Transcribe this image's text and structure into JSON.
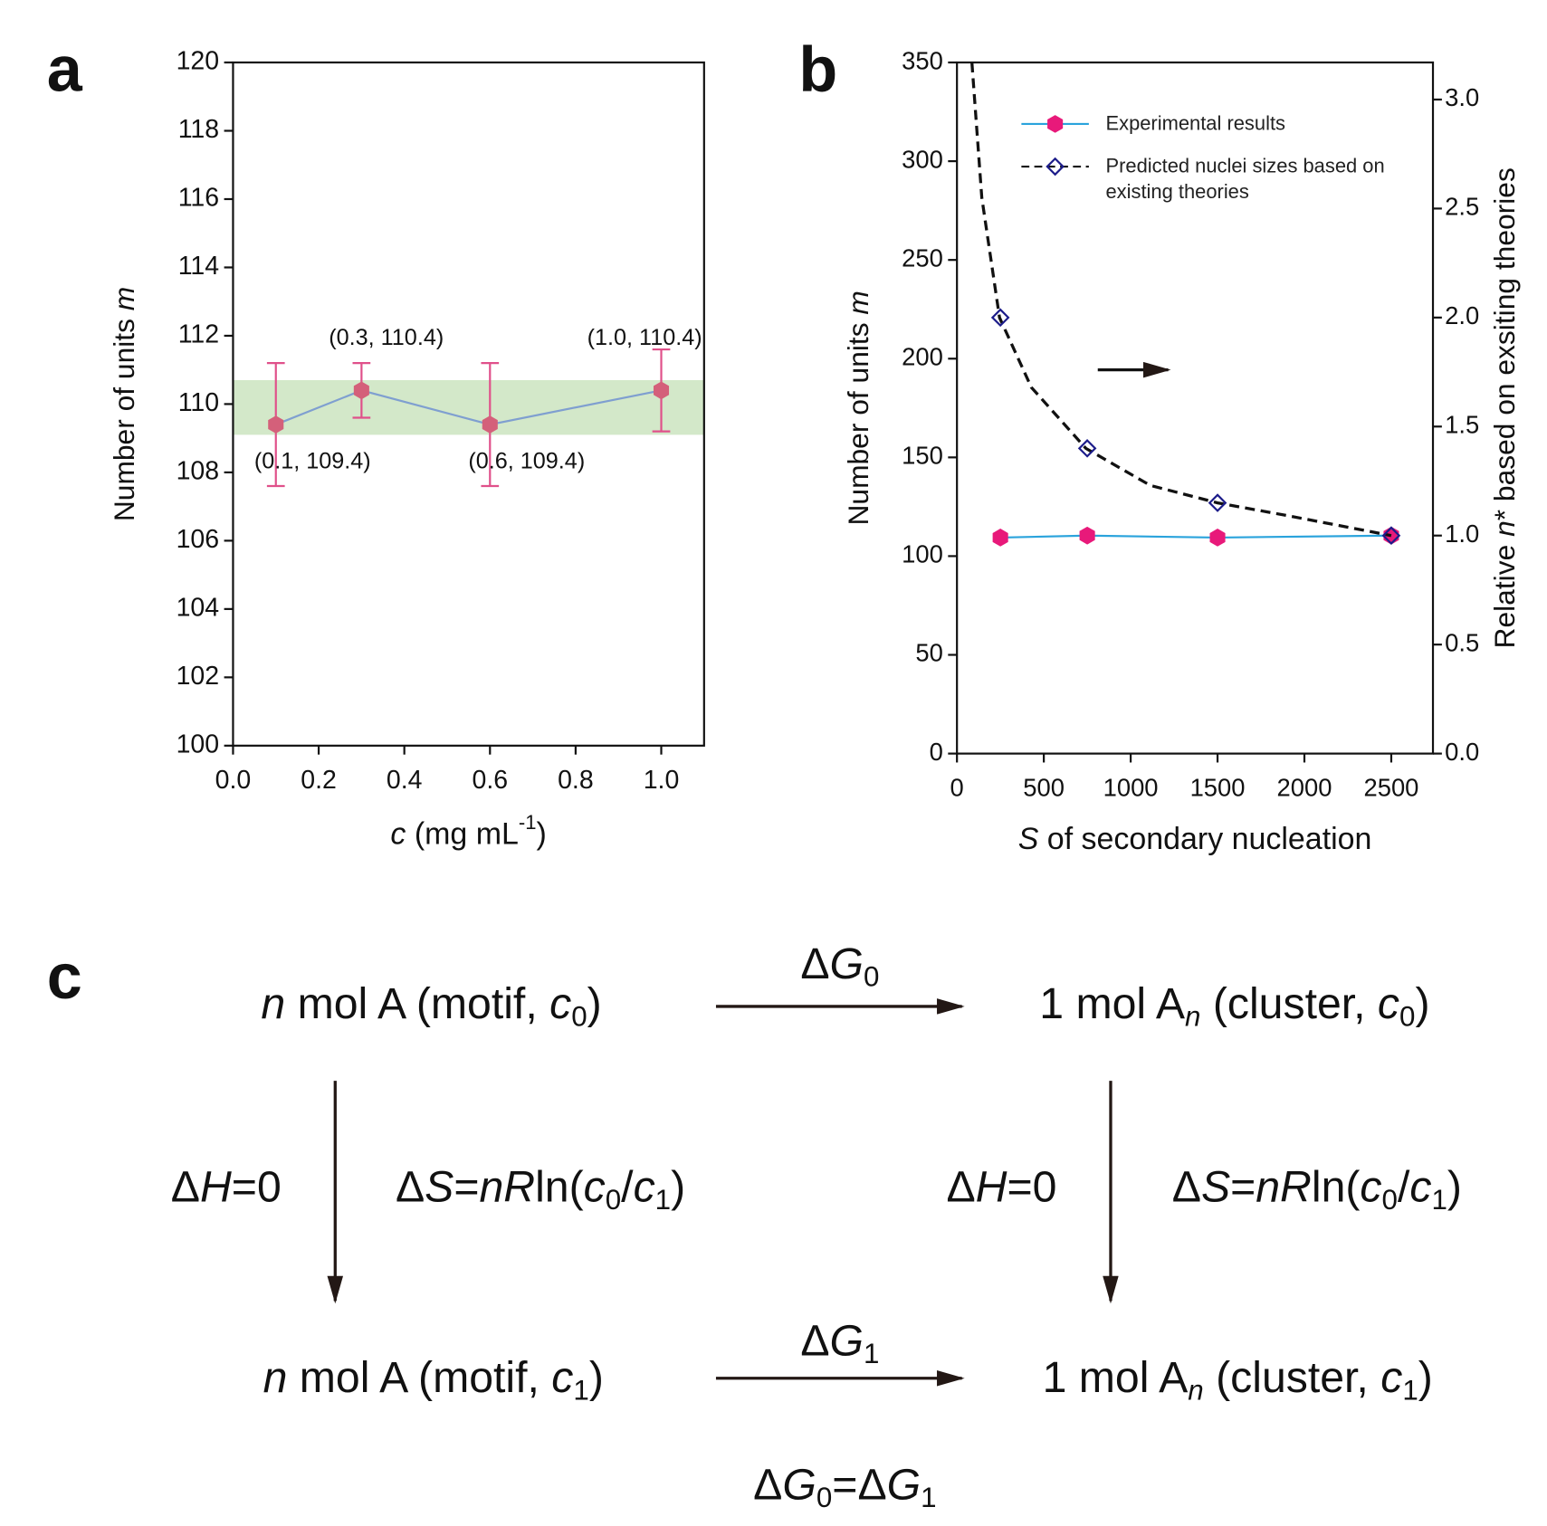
{
  "chart_data": [
    {
      "type": "line",
      "panel_label": "a",
      "x_label": [
        {
          "text": "c",
          "style": "i"
        },
        {
          "text": " (mg mL"
        },
        {
          "text": "-1",
          "style": "sup"
        },
        {
          "text": ")"
        }
      ],
      "y_label": [
        {
          "text": "Number of units "
        },
        {
          "text": "m",
          "style": "i"
        }
      ],
      "x": [
        0.1,
        0.3,
        0.6,
        1.0
      ],
      "xlim": [
        0,
        1.1
      ],
      "xticks": [
        {
          "value": 0,
          "label": "0.0"
        },
        0.2,
        0.4,
        0.6,
        0.8,
        {
          "value": 1,
          "label": "1.0"
        }
      ],
      "ylim": [
        100,
        120
      ],
      "yticks": [
        100,
        102,
        104,
        106,
        108,
        110,
        112,
        114,
        116,
        118,
        120
      ],
      "band": [
        109.1,
        110.7
      ],
      "band_color": "#d3e8c9",
      "series": [
        {
          "values": [
            109.4,
            110.4,
            109.4,
            110.4
          ],
          "errors": [
            1.8,
            0.8,
            1.8,
            1.2
          ],
          "value_labels": [
            "(0.1, 109.4)",
            "(0.3, 110.4)",
            "(0.6, 109.4)",
            "(1.0, 110.4)"
          ],
          "color": "#d4607a",
          "line_color": "#7f9fd0",
          "error_color": "#e0508a",
          "marker": "hexagon"
        }
      ]
    },
    {
      "type": "line",
      "panel_label": "b",
      "x_label": [
        {
          "text": "S",
          "style": "i"
        },
        {
          "text": " of secondary nucleation"
        }
      ],
      "y_label": [
        {
          "text": "Number of units "
        },
        {
          "text": "m",
          "style": "i"
        }
      ],
      "y2_label": [
        {
          "text": "Relative "
        },
        {
          "text": "n",
          "style": "i"
        },
        {
          "text": "* based on exsiting theories"
        }
      ],
      "x": [
        250,
        750,
        1500,
        2500
      ],
      "xlim": [
        0,
        2740
      ],
      "xticks": [
        0,
        500,
        1000,
        1500,
        2000,
        2500
      ],
      "ylim": [
        0,
        350
      ],
      "yticks": [
        0,
        50,
        100,
        150,
        200,
        250,
        300,
        350
      ],
      "y2lim": [
        0,
        3.17
      ],
      "y2ticks": [
        {
          "value": 0,
          "label": "0.0"
        },
        0.5,
        {
          "value": 1,
          "label": "1.0"
        },
        1.5,
        {
          "value": 2,
          "label": "2.0"
        },
        2.5,
        {
          "value": 3,
          "label": "3.0"
        }
      ],
      "legend": true,
      "series": [
        {
          "name": "Experimental results",
          "values": [
            109.4,
            110.4,
            109.4,
            110.4
          ],
          "color": "#e8197a",
          "line_color": "#2aa3dc",
          "marker": "hexagon"
        },
        {
          "name": "Predicted nuclei sizes based on existing theories",
          "axis": "y2",
          "values": [
            2.0,
            1.4,
            1.15,
            1.0
          ],
          "color": "#1c1c8a",
          "line_color": "#111111",
          "marker": "diamond",
          "connect": false,
          "fit_x": [
            86,
            143,
            245,
            428,
            742,
            1113,
            1500,
            1912,
            2500
          ],
          "fit_values": [
            3.17,
            2.55,
            2.0,
            1.68,
            1.4,
            1.23,
            1.15,
            1.09,
            1.0
          ]
        }
      ]
    }
  ],
  "diagram": {
    "panel_label": "c",
    "states": [
      [
        {
          "text": "n",
          "style": "i"
        },
        {
          "text": " mol A (motif, "
        },
        {
          "text": "c",
          "style": "i"
        },
        {
          "text": "0",
          "style": "sub"
        },
        {
          "text": ")"
        }
      ],
      [
        {
          "text": "1 mol A"
        },
        {
          "text": "n",
          "style": "isub"
        },
        {
          "text": " (cluster, "
        },
        {
          "text": "c",
          "style": "i"
        },
        {
          "text": "0",
          "style": "sub"
        },
        {
          "text": ")"
        }
      ],
      [
        {
          "text": "n",
          "style": "i"
        },
        {
          "text": " mol A (motif, "
        },
        {
          "text": "c",
          "style": "i"
        },
        {
          "text": "1",
          "style": "sub"
        },
        {
          "text": ")"
        }
      ],
      [
        {
          "text": "1 mol A"
        },
        {
          "text": "n",
          "style": "isub"
        },
        {
          "text": " (cluster, "
        },
        {
          "text": "c",
          "style": "i"
        },
        {
          "text": "1",
          "style": "sub"
        },
        {
          "text": ")"
        }
      ]
    ],
    "reactions": [
      [
        {
          "text": "Δ"
        },
        {
          "text": "G",
          "style": "i"
        },
        {
          "text": "0",
          "style": "sub"
        }
      ],
      [
        {
          "text": "Δ"
        },
        {
          "text": "G",
          "style": "i"
        },
        {
          "text": "1",
          "style": "sub"
        }
      ]
    ],
    "paths": [
      {
        "enthalpy": {
          "color": "#2b7bba",
          "segments": [
            {
              "text": "Δ"
            },
            {
              "text": "H",
              "style": "i"
            },
            {
              "text": "=0"
            }
          ]
        },
        "entropy": {
          "color": "#2b7bba",
          "segments": [
            {
              "text": "Δ"
            },
            {
              "text": "S",
              "style": "i"
            },
            {
              "text": "="
            },
            {
              "text": "nR",
              "style": "i"
            },
            {
              "text": "ln("
            },
            {
              "text": "c",
              "style": "i"
            },
            {
              "text": "0",
              "style": "sub"
            },
            {
              "text": "/"
            },
            {
              "text": "c",
              "style": "i"
            },
            {
              "text": "1",
              "style": "sub"
            },
            {
              "text": ")"
            }
          ]
        }
      },
      {
        "enthalpy": {
          "color": "#2b7bba",
          "segments": [
            {
              "text": "Δ"
            },
            {
              "text": "H",
              "style": "i"
            },
            {
              "text": "=0"
            }
          ]
        },
        "entropy": {
          "color": "#f5a623",
          "segments": [
            {
              "text": "Δ"
            },
            {
              "text": "S",
              "style": "i"
            },
            {
              "text": "="
            },
            {
              "text": "nR",
              "style": "i"
            },
            {
              "text": "ln("
            },
            {
              "text": "c",
              "style": "i"
            },
            {
              "text": "0",
              "style": "sub"
            },
            {
              "text": "/"
            },
            {
              "text": "c",
              "style": "i"
            },
            {
              "text": "1",
              "style": "sub"
            },
            {
              "text": ")"
            }
          ]
        }
      }
    ],
    "equation": [
      {
        "text": "Δ"
      },
      {
        "text": "G",
        "style": "i"
      },
      {
        "text": "0",
        "style": "sub"
      },
      {
        "text": "=Δ"
      },
      {
        "text": "G",
        "style": "i"
      },
      {
        "text": "1",
        "style": "sub"
      }
    ]
  }
}
